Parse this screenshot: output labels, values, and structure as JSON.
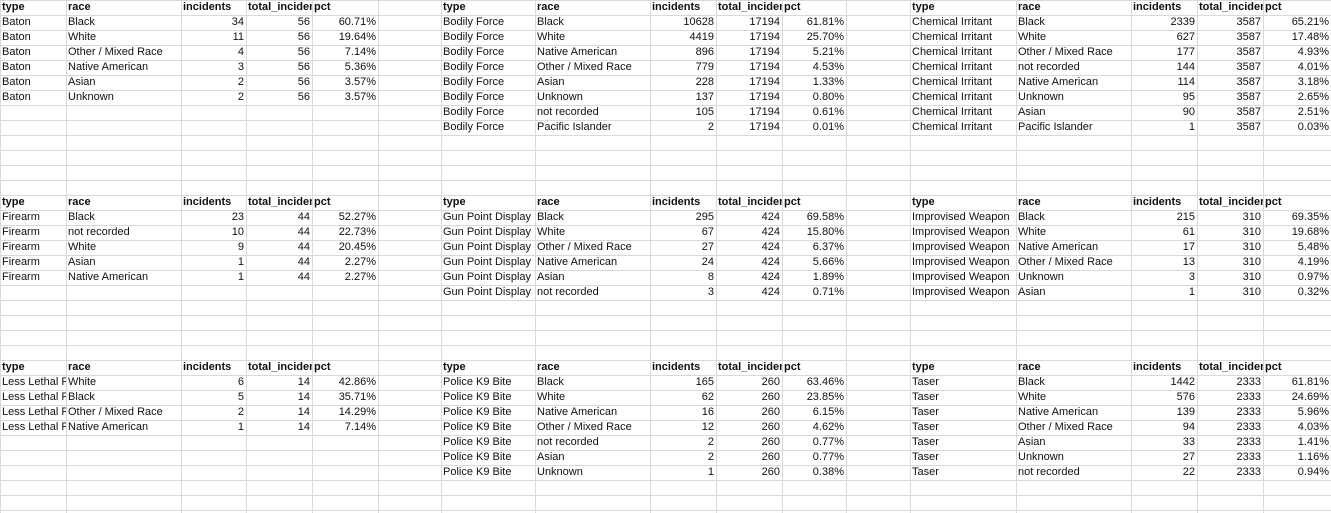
{
  "headers": [
    "type",
    "race",
    "incidents",
    "total_incidents",
    "pct"
  ],
  "blocks": [
    {
      "rows": [
        [
          "Baton",
          "Black",
          "34",
          "56",
          "60.71%"
        ],
        [
          "Baton",
          "White",
          "11",
          "56",
          "19.64%"
        ],
        [
          "Baton",
          "Other / Mixed Race",
          "4",
          "56",
          "7.14%"
        ],
        [
          "Baton",
          "Native American",
          "3",
          "56",
          "5.36%"
        ],
        [
          "Baton",
          "Asian",
          "2",
          "56",
          "3.57%"
        ],
        [
          "Baton",
          "Unknown",
          "2",
          "56",
          "3.57%"
        ]
      ]
    },
    {
      "rows": [
        [
          "Bodily Force",
          "Black",
          "10628",
          "17194",
          "61.81%"
        ],
        [
          "Bodily Force",
          "White",
          "4419",
          "17194",
          "25.70%"
        ],
        [
          "Bodily Force",
          "Native American",
          "896",
          "17194",
          "5.21%"
        ],
        [
          "Bodily Force",
          "Other / Mixed Race",
          "779",
          "17194",
          "4.53%"
        ],
        [
          "Bodily Force",
          "Asian",
          "228",
          "17194",
          "1.33%"
        ],
        [
          "Bodily Force",
          "Unknown",
          "137",
          "17194",
          "0.80%"
        ],
        [
          "Bodily Force",
          "not recorded",
          "105",
          "17194",
          "0.61%"
        ],
        [
          "Bodily Force",
          "Pacific Islander",
          "2",
          "17194",
          "0.01%"
        ]
      ]
    },
    {
      "rows": [
        [
          "Chemical Irritant",
          "Black",
          "2339",
          "3587",
          "65.21%"
        ],
        [
          "Chemical Irritant",
          "White",
          "627",
          "3587",
          "17.48%"
        ],
        [
          "Chemical Irritant",
          "Other / Mixed Race",
          "177",
          "3587",
          "4.93%"
        ],
        [
          "Chemical Irritant",
          "not recorded",
          "144",
          "3587",
          "4.01%"
        ],
        [
          "Chemical Irritant",
          "Native American",
          "114",
          "3587",
          "3.18%"
        ],
        [
          "Chemical Irritant",
          "Unknown",
          "95",
          "3587",
          "2.65%"
        ],
        [
          "Chemical Irritant",
          "Asian",
          "90",
          "3587",
          "2.51%"
        ],
        [
          "Chemical Irritant",
          "Pacific Islander",
          "1",
          "3587",
          "0.03%"
        ]
      ]
    },
    {
      "rows": [
        [
          "Firearm",
          "Black",
          "23",
          "44",
          "52.27%"
        ],
        [
          "Firearm",
          "not recorded",
          "10",
          "44",
          "22.73%"
        ],
        [
          "Firearm",
          "White",
          "9",
          "44",
          "20.45%"
        ],
        [
          "Firearm",
          "Asian",
          "1",
          "44",
          "2.27%"
        ],
        [
          "Firearm",
          "Native American",
          "1",
          "44",
          "2.27%"
        ]
      ]
    },
    {
      "rows": [
        [
          "Gun Point Display",
          "Black",
          "295",
          "424",
          "69.58%"
        ],
        [
          "Gun Point Display",
          "White",
          "67",
          "424",
          "15.80%"
        ],
        [
          "Gun Point Display",
          "Other / Mixed Race",
          "27",
          "424",
          "6.37%"
        ],
        [
          "Gun Point Display",
          "Native American",
          "24",
          "424",
          "5.66%"
        ],
        [
          "Gun Point Display",
          "Asian",
          "8",
          "424",
          "1.89%"
        ],
        [
          "Gun Point Display",
          "not recorded",
          "3",
          "424",
          "0.71%"
        ]
      ]
    },
    {
      "rows": [
        [
          "Improvised Weapon",
          "Black",
          "215",
          "310",
          "69.35%"
        ],
        [
          "Improvised Weapon",
          "White",
          "61",
          "310",
          "19.68%"
        ],
        [
          "Improvised Weapon",
          "Native American",
          "17",
          "310",
          "5.48%"
        ],
        [
          "Improvised Weapon",
          "Other / Mixed Race",
          "13",
          "310",
          "4.19%"
        ],
        [
          "Improvised Weapon",
          "Unknown",
          "3",
          "310",
          "0.97%"
        ],
        [
          "Improvised Weapon",
          "Asian",
          "1",
          "310",
          "0.32%"
        ]
      ]
    },
    {
      "rows": [
        [
          "Less Lethal Projectile",
          "White",
          "6",
          "14",
          "42.86%"
        ],
        [
          "Less Lethal Projectile",
          "Black",
          "5",
          "14",
          "35.71%"
        ],
        [
          "Less Lethal Projectile",
          "Other / Mixed Race",
          "2",
          "14",
          "14.29%"
        ],
        [
          "Less Lethal Projectile",
          "Native American",
          "1",
          "14",
          "7.14%"
        ]
      ]
    },
    {
      "rows": [
        [
          "Police K9 Bite",
          "Black",
          "165",
          "260",
          "63.46%"
        ],
        [
          "Police K9 Bite",
          "White",
          "62",
          "260",
          "23.85%"
        ],
        [
          "Police K9 Bite",
          "Native American",
          "16",
          "260",
          "6.15%"
        ],
        [
          "Police K9 Bite",
          "Other / Mixed Race",
          "12",
          "260",
          "4.62%"
        ],
        [
          "Police K9 Bite",
          "not recorded",
          "2",
          "260",
          "0.77%"
        ],
        [
          "Police K9 Bite",
          "Asian",
          "2",
          "260",
          "0.77%"
        ],
        [
          "Police K9 Bite",
          "Unknown",
          "1",
          "260",
          "0.38%"
        ]
      ]
    },
    {
      "rows": [
        [
          "Taser",
          "Black",
          "1442",
          "2333",
          "61.81%"
        ],
        [
          "Taser",
          "White",
          "576",
          "2333",
          "24.69%"
        ],
        [
          "Taser",
          "Native American",
          "139",
          "2333",
          "5.96%"
        ],
        [
          "Taser",
          "Other / Mixed Race",
          "94",
          "2333",
          "4.03%"
        ],
        [
          "Taser",
          "Asian",
          "33",
          "2333",
          "1.41%"
        ],
        [
          "Taser",
          "Unknown",
          "27",
          "2333",
          "1.16%"
        ],
        [
          "Taser",
          "not recorded",
          "22",
          "2333",
          "0.94%"
        ]
      ]
    }
  ]
}
